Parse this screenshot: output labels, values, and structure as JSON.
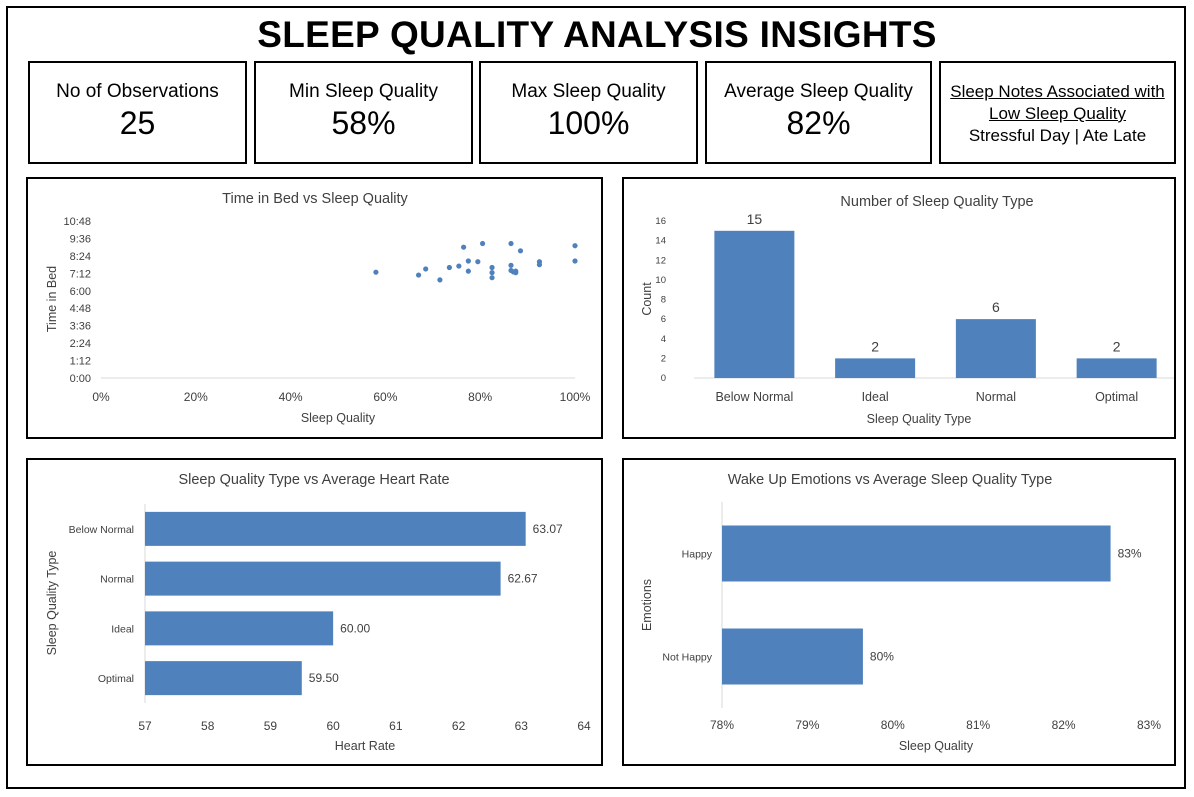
{
  "title": "SLEEP QUALITY ANALYSIS INSIGHTS",
  "kpis": [
    {
      "label": "No of Observations",
      "value": "25"
    },
    {
      "label": "Min Sleep Quality",
      "value": "58%"
    },
    {
      "label": "Max Sleep Quality",
      "value": "100%"
    },
    {
      "label": "Average Sleep Quality",
      "value": "82%"
    }
  ],
  "notes": {
    "header": "Sleep Notes Associated with Low Sleep Quality",
    "text": "Stressful Day | Ate Late"
  },
  "colors": {
    "bar": "#4f81bd",
    "axis": "#d9d9d9",
    "text": "#404040"
  },
  "chart_data": [
    {
      "id": "scatter",
      "type": "scatter",
      "title": "Time in Bed vs Sleep Quality",
      "xlabel": "Sleep Quality",
      "ylabel": "Time in Bed",
      "xlim": [
        0,
        100
      ],
      "xticks": [
        "0%",
        "20%",
        "40%",
        "60%",
        "80%",
        "100%"
      ],
      "yticks": [
        "0:00",
        "1:12",
        "2:24",
        "3:36",
        "4:48",
        "6:00",
        "7:12",
        "8:24",
        "9:36",
        "10:48"
      ],
      "ylim_hours": [
        0,
        10.8
      ],
      "points": [
        [
          58,
          7.28
        ],
        [
          67,
          7.08
        ],
        [
          68.5,
          7.5
        ],
        [
          71.5,
          6.75
        ],
        [
          73.5,
          7.6
        ],
        [
          75.5,
          7.7
        ],
        [
          76.5,
          9.0
        ],
        [
          77.5,
          8.05
        ],
        [
          77.5,
          7.35
        ],
        [
          80.5,
          9.25
        ],
        [
          79.5,
          8.0
        ],
        [
          82.5,
          7.6
        ],
        [
          82.5,
          7.25
        ],
        [
          82.5,
          6.9
        ],
        [
          86.5,
          9.25
        ],
        [
          86.5,
          7.75
        ],
        [
          86.5,
          7.4
        ],
        [
          87.5,
          7.35
        ],
        [
          87.5,
          7.25
        ],
        [
          88.5,
          8.75
        ],
        [
          92.5,
          8.0
        ],
        [
          92.5,
          7.8
        ],
        [
          100,
          9.1
        ],
        [
          100,
          8.05
        ],
        [
          87,
          7.3
        ]
      ]
    },
    {
      "id": "count",
      "type": "bar",
      "title": "Number of Sleep Quality Type",
      "xlabel": "Sleep Quality Type",
      "ylabel": "Count",
      "categories": [
        "Below Normal",
        "Ideal",
        "Normal",
        "Optimal"
      ],
      "values": [
        15,
        2,
        6,
        2
      ],
      "yticks": [
        "0",
        "2",
        "4",
        "6",
        "8",
        "10",
        "12",
        "14",
        "16"
      ],
      "ylim": [
        0,
        16
      ]
    },
    {
      "id": "heart",
      "type": "bar",
      "orientation": "horizontal",
      "title": "Sleep Quality Type vs Average Heart Rate",
      "xlabel": "Heart Rate",
      "ylabel": "Sleep Quality Type",
      "categories": [
        "Below Normal",
        "Normal",
        "Ideal",
        "Optimal"
      ],
      "values": [
        63.07,
        62.67,
        60.0,
        59.5
      ],
      "labels": [
        "63.07",
        "62.67",
        "60.00",
        "59.50"
      ],
      "xticks": [
        "57",
        "58",
        "59",
        "60",
        "61",
        "62",
        "63",
        "64"
      ],
      "xlim": [
        57,
        64
      ]
    },
    {
      "id": "emotion",
      "type": "bar",
      "orientation": "horizontal",
      "title": "Wake Up Emotions vs Average Sleep Quality Type",
      "xlabel": "Sleep Quality",
      "ylabel": "Emotions",
      "categories": [
        "Happy",
        "Not Happy"
      ],
      "values": [
        82.55,
        79.65
      ],
      "labels": [
        "83%",
        "80%"
      ],
      "xticks": [
        "78%",
        "79%",
        "80%",
        "81%",
        "82%",
        "83%"
      ],
      "xlim": [
        78,
        83
      ]
    }
  ]
}
